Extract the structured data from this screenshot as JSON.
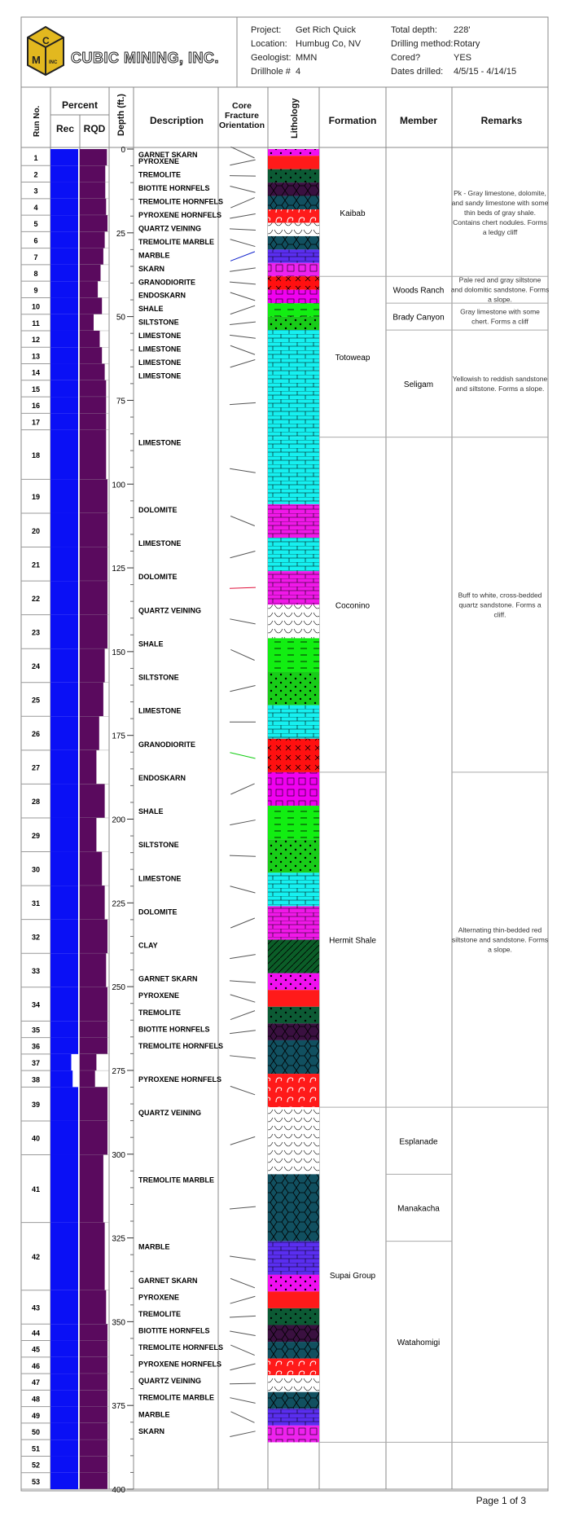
{
  "company": {
    "name": "CUBIC MINING, INC.",
    "logo_letters": [
      "C",
      "M",
      "INC"
    ]
  },
  "header": {
    "fields": [
      {
        "label": "Project:",
        "value": "Get Rich Quick"
      },
      {
        "label": "Location:",
        "value": "Humbug Co, NV"
      },
      {
        "label": "Geologist:",
        "value": "MMN"
      },
      {
        "label": "Drillhole #",
        "value": "4"
      }
    ],
    "fields_right": [
      {
        "label": "Total depth:",
        "value": "228'"
      },
      {
        "label": "Drilling method:",
        "value": "Rotary"
      },
      {
        "label": "Cored?",
        "value": "YES"
      },
      {
        "label": "Dates drilled:",
        "value": "4/5/15 - 4/14/15"
      }
    ]
  },
  "columns": {
    "run_no": "Run No.",
    "percent": "Percent",
    "rec": "Rec",
    "rqd": "RQD",
    "depth": "Depth (ft.)",
    "description": "Description",
    "core": [
      "Core",
      "Fracture",
      "Orientation"
    ],
    "lithology": "Lithology",
    "formation": "Formation",
    "member": "Member",
    "remarks": "Remarks"
  },
  "depth_ticks": [
    "0",
    "25",
    "50",
    "75",
    "100",
    "125",
    "150",
    "175",
    "200",
    "225",
    "250",
    "275",
    "300",
    "325",
    "350",
    "375",
    "400"
  ],
  "colors": {
    "rec": "#0a10f5",
    "rqd": "#5a0a5e",
    "garnet_skarn": "#f00ff0",
    "pyroxene": "#ff1a1a",
    "tremolite": "#0c5a34",
    "biotite": "#3a1040",
    "hornfels": "#115060",
    "quartz": "#ffffff",
    "marble": "#5a2ef0",
    "skarn": "#ee22ee",
    "granodiorite": "#ff1010",
    "endoskarn": "#f000f0",
    "shale": "#12ee12",
    "siltstone": "#18cc18",
    "limestone": "#16f0f0",
    "dolomite": "#f018e8",
    "clay": "#0b5e28"
  },
  "runs": [
    {
      "no": "1",
      "h": 20,
      "rec": 1,
      "rqd": 0.98
    },
    {
      "no": "2",
      "h": 20,
      "rec": 1,
      "rqd": 0.92
    },
    {
      "no": "3",
      "h": 20,
      "rec": 1,
      "rqd": 0.92
    },
    {
      "no": "4",
      "h": 20,
      "rec": 1,
      "rqd": 0.95
    },
    {
      "no": "5",
      "h": 20,
      "rec": 1,
      "rqd": 1.0
    },
    {
      "no": "6",
      "h": 20,
      "rec": 1,
      "rqd": 0.9
    },
    {
      "no": "7",
      "h": 20,
      "rec": 1,
      "rqd": 0.85
    },
    {
      "no": "8",
      "h": 20,
      "rec": 1,
      "rqd": 0.75
    },
    {
      "no": "9",
      "h": 20,
      "rec": 1,
      "rqd": 0.65
    },
    {
      "no": "10",
      "h": 20,
      "rec": 1,
      "rqd": 0.8
    },
    {
      "no": "11",
      "h": 20,
      "rec": 1,
      "rqd": 0.5
    },
    {
      "no": "12",
      "h": 20,
      "rec": 1,
      "rqd": 0.72
    },
    {
      "no": "13",
      "h": 20,
      "rec": 1,
      "rqd": 0.8
    },
    {
      "no": "14",
      "h": 20,
      "rec": 1,
      "rqd": 0.9
    },
    {
      "no": "15",
      "h": 20,
      "rec": 1,
      "rqd": 0.95
    },
    {
      "no": "16",
      "h": 20,
      "rec": 1,
      "rqd": 0.95
    },
    {
      "no": "17",
      "h": 20,
      "rec": 1,
      "rqd": 0.95
    },
    {
      "no": "18",
      "h": 60,
      "rec": 1,
      "rqd": 0.95
    },
    {
      "no": "19",
      "h": 41,
      "rec": 1,
      "rqd": 1.0
    },
    {
      "no": "20",
      "h": 41,
      "rec": 1,
      "rqd": 1.0
    },
    {
      "no": "21",
      "h": 41,
      "rec": 1,
      "rqd": 1.0
    },
    {
      "no": "22",
      "h": 41,
      "rec": 1,
      "rqd": 1.0
    },
    {
      "no": "23",
      "h": 41,
      "rec": 1,
      "rqd": 1.0
    },
    {
      "no": "24",
      "h": 41,
      "rec": 1,
      "rqd": 0.9
    },
    {
      "no": "25",
      "h": 41,
      "rec": 1,
      "rqd": 0.85
    },
    {
      "no": "26",
      "h": 41,
      "rec": 1,
      "rqd": 0.7
    },
    {
      "no": "27",
      "h": 41,
      "rec": 1,
      "rqd": 0.6
    },
    {
      "no": "28",
      "h": 41,
      "rec": 1,
      "rqd": 0.9
    },
    {
      "no": "29",
      "h": 41,
      "rec": 1,
      "rqd": 0.6
    },
    {
      "no": "30",
      "h": 41,
      "rec": 1,
      "rqd": 0.8
    },
    {
      "no": "31",
      "h": 41,
      "rec": 1,
      "rqd": 0.9
    },
    {
      "no": "32",
      "h": 41,
      "rec": 1,
      "rqd": 1.0
    },
    {
      "no": "33",
      "h": 41,
      "rec": 1,
      "rqd": 0.95
    },
    {
      "no": "34",
      "h": 41,
      "rec": 1,
      "rqd": 1.0
    },
    {
      "no": "35",
      "h": 20,
      "rec": 1,
      "rqd": 1.0
    },
    {
      "no": "36",
      "h": 20,
      "rec": 1,
      "rqd": 1.0
    },
    {
      "no": "37",
      "h": 20,
      "rec": 0.75,
      "rqd": 0.6
    },
    {
      "no": "38",
      "h": 20,
      "rec": 0.8,
      "rqd": 0.55
    },
    {
      "no": "39",
      "h": 41,
      "rec": 1,
      "rqd": 1.0
    },
    {
      "no": "40",
      "h": 41,
      "rec": 1,
      "rqd": 1.0
    },
    {
      "no": "41",
      "h": 82,
      "rec": 1,
      "rqd": 0.85
    },
    {
      "no": "42",
      "h": 82,
      "rec": 1,
      "rqd": 0.9
    },
    {
      "no": "43",
      "h": 41,
      "rec": 1,
      "rqd": 0.95
    },
    {
      "no": "44",
      "h": 20,
      "rec": 1,
      "rqd": 1.0
    },
    {
      "no": "45",
      "h": 20,
      "rec": 1,
      "rqd": 1.0
    },
    {
      "no": "46",
      "h": 20,
      "rec": 1,
      "rqd": 1.0
    },
    {
      "no": "47",
      "h": 20,
      "rec": 1,
      "rqd": 1.0
    },
    {
      "no": "48",
      "h": 20,
      "rec": 1,
      "rqd": 1.0
    },
    {
      "no": "49",
      "h": 20,
      "rec": 1,
      "rqd": 1.0
    },
    {
      "no": "50",
      "h": 20,
      "rec": 1,
      "rqd": 1.0
    },
    {
      "no": "51",
      "h": 20,
      "rec": 1,
      "rqd": 1.0
    },
    {
      "no": "52",
      "h": 20,
      "rec": 1,
      "rqd": 1.0
    },
    {
      "no": "53",
      "h": 20,
      "rec": 1,
      "rqd": 1.0
    }
  ],
  "layers": [
    {
      "name": "GARNET SKARN",
      "from": 0,
      "to": 2,
      "fill": "garnet_skarn",
      "pat": "dots"
    },
    {
      "name": "PYROXENE",
      "from": 2,
      "to": 6,
      "fill": "pyroxene",
      "pat": "none"
    },
    {
      "name": "TREMOLITE",
      "from": 6,
      "to": 10,
      "fill": "tremolite",
      "pat": "dots"
    },
    {
      "name": "BIOTITE HORNFELS",
      "from": 10,
      "to": 14,
      "fill": "biotite",
      "pat": "hex"
    },
    {
      "name": "TREMOLITE HORNFELS",
      "from": 14,
      "to": 18,
      "fill": "hornfels",
      "pat": "hex"
    },
    {
      "name": "PYROXENE HORNFELS",
      "from": 18,
      "to": 22,
      "fill": "pyroxene",
      "pat": "curl"
    },
    {
      "name": "QUARTZ VEINING",
      "from": 22,
      "to": 26,
      "fill": "quartz",
      "pat": "vees"
    },
    {
      "name": "TREMOLITE MARBLE",
      "from": 26,
      "to": 30,
      "fill": "hornfels",
      "pat": "hex"
    },
    {
      "name": "MARBLE",
      "from": 30,
      "to": 34,
      "fill": "marble",
      "pat": "brick"
    },
    {
      "name": "SKARN",
      "from": 34,
      "to": 38,
      "fill": "skarn",
      "pat": "square"
    },
    {
      "name": "GRANODIORITE",
      "from": 38,
      "to": 42,
      "fill": "granodiorite",
      "pat": "cross"
    },
    {
      "name": "ENDOSKARN",
      "from": 42,
      "to": 46,
      "fill": "endoskarn",
      "pat": "square"
    },
    {
      "name": "SHALE",
      "from": 46,
      "to": 50,
      "fill": "shale",
      "pat": "dash"
    },
    {
      "name": "SILTSTONE",
      "from": 50,
      "to": 54,
      "fill": "siltstone",
      "pat": "dots"
    },
    {
      "name": "LIMESTONE",
      "from": 54,
      "to": 58,
      "fill": "limestone",
      "pat": "brick"
    },
    {
      "name": "LIMESTONE",
      "from": 58,
      "to": 62,
      "fill": "limestone",
      "pat": "brick"
    },
    {
      "name": "LIMESTONE",
      "from": 62,
      "to": 66,
      "fill": "limestone",
      "pat": "brick"
    },
    {
      "name": "LIMESTONE",
      "from": 66,
      "to": 86,
      "fill": "limestone",
      "pat": "brick"
    },
    {
      "name": "LIMESTONE",
      "from": 86,
      "to": 106,
      "fill": "limestone",
      "pat": "brick"
    },
    {
      "name": "DOLOMITE",
      "from": 106,
      "to": 116,
      "fill": "dolomite",
      "pat": "brick"
    },
    {
      "name": "LIMESTONE",
      "from": 116,
      "to": 126,
      "fill": "limestone",
      "pat": "brick"
    },
    {
      "name": "DOLOMITE",
      "from": 126,
      "to": 136,
      "fill": "dolomite",
      "pat": "brick"
    },
    {
      "name": "QUARTZ VEINING",
      "from": 136,
      "to": 146,
      "fill": "quartz",
      "pat": "vees"
    },
    {
      "name": "SHALE",
      "from": 146,
      "to": 156,
      "fill": "shale",
      "pat": "dash"
    },
    {
      "name": "SILTSTONE",
      "from": 156,
      "to": 166,
      "fill": "siltstone",
      "pat": "dots"
    },
    {
      "name": "LIMESTONE",
      "from": 166,
      "to": 176,
      "fill": "limestone",
      "pat": "brick"
    },
    {
      "name": "GRANODIORITE",
      "from": 176,
      "to": 186,
      "fill": "granodiorite",
      "pat": "cross"
    },
    {
      "name": "ENDOSKARN",
      "from": 186,
      "to": 196,
      "fill": "endoskarn",
      "pat": "square"
    },
    {
      "name": "SHALE",
      "from": 196,
      "to": 206,
      "fill": "shale",
      "pat": "dash"
    },
    {
      "name": "SILTSTONE",
      "from": 206,
      "to": 216,
      "fill": "siltstone",
      "pat": "dots"
    },
    {
      "name": "LIMESTONE",
      "from": 216,
      "to": 226,
      "fill": "limestone",
      "pat": "brick"
    },
    {
      "name": "DOLOMITE",
      "from": 226,
      "to": 236,
      "fill": "dolomite",
      "pat": "brick"
    },
    {
      "name": "CLAY",
      "from": 236,
      "to": 246,
      "fill": "clay",
      "pat": "diag"
    },
    {
      "name": "GARNET SKARN",
      "from": 246,
      "to": 251,
      "fill": "garnet_skarn",
      "pat": "dots"
    },
    {
      "name": "PYROXENE",
      "from": 251,
      "to": 256,
      "fill": "pyroxene",
      "pat": "none"
    },
    {
      "name": "TREMOLITE",
      "from": 256,
      "to": 261,
      "fill": "tremolite",
      "pat": "dots"
    },
    {
      "name": "BIOTITE HORNFELS",
      "from": 261,
      "to": 266,
      "fill": "biotite",
      "pat": "hex"
    },
    {
      "name": "TREMOLITE HORNFELS",
      "from": 266,
      "to": 276,
      "fill": "hornfels",
      "pat": "hex"
    },
    {
      "name": "PYROXENE HORNFELS",
      "from": 276,
      "to": 286,
      "fill": "pyroxene",
      "pat": "curl"
    },
    {
      "name": "QUARTZ VEINING",
      "from": 286,
      "to": 306,
      "fill": "quartz",
      "pat": "vees"
    },
    {
      "name": "TREMOLITE MARBLE",
      "from": 306,
      "to": 326,
      "fill": "hornfels",
      "pat": "hex"
    },
    {
      "name": "MARBLE",
      "from": 326,
      "to": 336,
      "fill": "marble",
      "pat": "brick"
    },
    {
      "name": "GARNET SKARN",
      "from": 336,
      "to": 341,
      "fill": "garnet_skarn",
      "pat": "dots"
    },
    {
      "name": "PYROXENE",
      "from": 341,
      "to": 346,
      "fill": "pyroxene",
      "pat": "none"
    },
    {
      "name": "TREMOLITE",
      "from": 346,
      "to": 351,
      "fill": "tremolite",
      "pat": "dots"
    },
    {
      "name": "BIOTITE HORNFELS",
      "from": 351,
      "to": 356,
      "fill": "biotite",
      "pat": "hex"
    },
    {
      "name": "TREMOLITE HORNFELS",
      "from": 356,
      "to": 361,
      "fill": "hornfels",
      "pat": "hex"
    },
    {
      "name": "PYROXENE HORNFELS",
      "from": 361,
      "to": 366,
      "fill": "pyroxene",
      "pat": "curl"
    },
    {
      "name": "QUARTZ VEINING",
      "from": 366,
      "to": 371,
      "fill": "quartz",
      "pat": "vees"
    },
    {
      "name": "TREMOLITE MARBLE",
      "from": 371,
      "to": 376,
      "fill": "hornfels",
      "pat": "hex"
    },
    {
      "name": "MARBLE",
      "from": 376,
      "to": 381,
      "fill": "marble",
      "pat": "brick"
    },
    {
      "name": "SKARN",
      "from": 381,
      "to": 386,
      "fill": "skarn",
      "pat": "square"
    }
  ],
  "formations": [
    {
      "name": "Kaibab",
      "from": 0,
      "to": 38
    },
    {
      "name": "Totoweap",
      "from": 38,
      "to": 86
    },
    {
      "name": "Coconino",
      "from": 86,
      "to": 186
    },
    {
      "name": "Hermit Shale",
      "from": 186,
      "to": 286
    },
    {
      "name": "Supai Group",
      "from": 286,
      "to": 386
    }
  ],
  "members": [
    {
      "name": "",
      "from": 0,
      "to": 38
    },
    {
      "name": "Woods Ranch",
      "from": 38,
      "to": 46
    },
    {
      "name": "Brady Canyon",
      "from": 46,
      "to": 54
    },
    {
      "name": "Seligam",
      "from": 54,
      "to": 86
    },
    {
      "name": "",
      "from": 86,
      "to": 286
    },
    {
      "name": "Esplanade",
      "from": 286,
      "to": 306
    },
    {
      "name": "Manakacha",
      "from": 306,
      "to": 326
    },
    {
      "name": "Watahomigi",
      "from": 326,
      "to": 386
    }
  ],
  "remarks": [
    {
      "text": "Pk - Gray limestone, dolomite, and sandy limestone with some thin beds of gray shale. Contains chert nodules. Forms a ledgy cliff",
      "from": 0,
      "to": 38
    },
    {
      "text": "Pale red and gray siltstone and dolomitic sandstone. Forms a slope.",
      "from": 38,
      "to": 46
    },
    {
      "text": "Gray limestone with some chert. Forms a cliff",
      "from": 46,
      "to": 54
    },
    {
      "text": "Yellowish to reddish sandstone and siltstone. Forms a slope.",
      "from": 54,
      "to": 86
    },
    {
      "text": "Buff to white, cross-bedded quartz sandstone. Forms a cliff.",
      "from": 86,
      "to": 186
    },
    {
      "text": "Alternating thin-bedded red siltstone and sandstone. Forms a slope.",
      "from": 186,
      "to": 286
    },
    {
      "text": "",
      "from": 286,
      "to": 386
    }
  ],
  "footer": {
    "page": "Page 1 of 3"
  }
}
